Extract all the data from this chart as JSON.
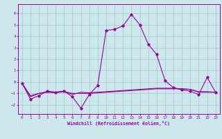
{
  "xlabel": "Windchill (Refroidissement éolien,°C)",
  "ylabel": "",
  "xlim": [
    -0.5,
    23.5
  ],
  "ylim": [
    -2.8,
    6.8
  ],
  "yticks": [
    -2,
    -1,
    0,
    1,
    2,
    3,
    4,
    5,
    6
  ],
  "xticks": [
    0,
    1,
    2,
    3,
    4,
    5,
    6,
    7,
    8,
    9,
    10,
    11,
    12,
    13,
    14,
    15,
    16,
    17,
    18,
    19,
    20,
    21,
    22,
    23
  ],
  "bg_color": "#cce8ec",
  "grid_color": "#aacccc",
  "line_color": "#990099",
  "series": [
    [
      0,
      -0.1
    ],
    [
      1,
      -1.5
    ],
    [
      2,
      -1.2
    ],
    [
      3,
      -0.8
    ],
    [
      4,
      -0.9
    ],
    [
      5,
      -0.8
    ],
    [
      6,
      -1.3
    ],
    [
      7,
      -2.3
    ],
    [
      8,
      -1.1
    ],
    [
      9,
      -0.3
    ],
    [
      10,
      4.5
    ],
    [
      11,
      4.6
    ],
    [
      12,
      4.9
    ],
    [
      13,
      5.9
    ],
    [
      14,
      5.0
    ],
    [
      15,
      3.3
    ],
    [
      16,
      2.4
    ],
    [
      17,
      0.1
    ],
    [
      18,
      -0.5
    ],
    [
      19,
      -0.7
    ],
    [
      20,
      -0.8
    ],
    [
      21,
      -1.1
    ],
    [
      22,
      0.4
    ],
    [
      23,
      -0.9
    ]
  ],
  "series2": [
    [
      0,
      -0.1
    ],
    [
      1,
      -1.2
    ],
    [
      2,
      -1.0
    ],
    [
      3,
      -0.9
    ],
    [
      4,
      -0.95
    ],
    [
      5,
      -0.85
    ],
    [
      6,
      -1.0
    ],
    [
      7,
      -1.0
    ],
    [
      8,
      -1.0
    ],
    [
      9,
      -0.95
    ],
    [
      10,
      -0.9
    ],
    [
      11,
      -0.85
    ],
    [
      12,
      -0.8
    ],
    [
      13,
      -0.75
    ],
    [
      14,
      -0.7
    ],
    [
      15,
      -0.65
    ],
    [
      16,
      -0.6
    ],
    [
      17,
      -0.6
    ],
    [
      18,
      -0.6
    ],
    [
      19,
      -0.6
    ],
    [
      20,
      -0.65
    ],
    [
      21,
      -0.85
    ],
    [
      22,
      -0.85
    ],
    [
      23,
      -0.9
    ]
  ],
  "series3": [
    [
      0,
      -0.1
    ],
    [
      1,
      -1.3
    ],
    [
      2,
      -1.0
    ],
    [
      3,
      -0.85
    ],
    [
      4,
      -0.9
    ],
    [
      5,
      -0.8
    ],
    [
      6,
      -1.1
    ],
    [
      7,
      -0.9
    ],
    [
      8,
      -0.95
    ],
    [
      9,
      -0.9
    ],
    [
      10,
      -0.85
    ],
    [
      11,
      -0.8
    ],
    [
      12,
      -0.75
    ],
    [
      13,
      -0.7
    ],
    [
      14,
      -0.65
    ],
    [
      15,
      -0.6
    ],
    [
      16,
      -0.55
    ],
    [
      17,
      -0.55
    ],
    [
      18,
      -0.55
    ],
    [
      19,
      -0.6
    ],
    [
      20,
      -0.65
    ],
    [
      21,
      -0.9
    ],
    [
      22,
      -0.9
    ],
    [
      23,
      -0.9
    ]
  ]
}
